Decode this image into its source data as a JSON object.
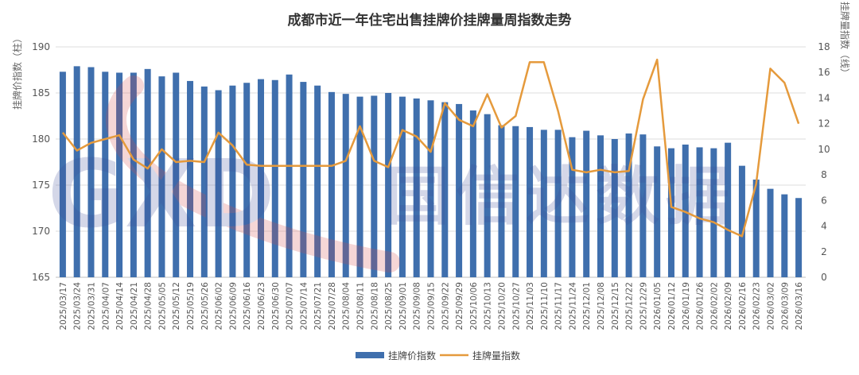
{
  "chart_data": {
    "type": "bar",
    "title": "成都市近一年住宅出售挂牌价挂牌量周指数走势",
    "ylabel_left": "挂牌价指数（柱）",
    "ylabel_right": "挂牌量指数（线）",
    "ylim_left": [
      165,
      190
    ],
    "yticks_left": [
      165,
      170,
      175,
      180,
      185,
      190
    ],
    "ylim_right": [
      0,
      18
    ],
    "yticks_right": [
      0,
      2,
      4,
      6,
      8,
      10,
      12,
      14,
      16,
      18
    ],
    "grid": true,
    "legend_position": "bottom",
    "categories": [
      "2025/03/17",
      "2025/03/24",
      "2025/03/31",
      "2025/04/07",
      "2025/04/14",
      "2025/04/21",
      "2025/04/28",
      "2025/05/05",
      "2025/05/12",
      "2025/05/19",
      "2025/05/26",
      "2025/06/02",
      "2025/06/09",
      "2025/06/16",
      "2025/06/23",
      "2025/06/30",
      "2025/07/07",
      "2025/07/14",
      "2025/07/21",
      "2025/07/28",
      "2025/08/04",
      "2025/08/11",
      "2025/08/18",
      "2025/08/25",
      "2025/09/01",
      "2025/09/08",
      "2025/09/15",
      "2025/09/22",
      "2025/09/29",
      "2025/10/06",
      "2025/10/13",
      "2025/10/20",
      "2025/10/27",
      "2025/11/03",
      "2025/11/10",
      "2025/11/17",
      "2025/11/24",
      "2025/12/01",
      "2025/12/08",
      "2025/12/15",
      "2025/12/22",
      "2025/12/29",
      "2026/01/05",
      "2026/01/12",
      "2026/01/19",
      "2026/01/26",
      "2026/02/02",
      "2026/02/09",
      "2026/02/16",
      "2026/02/23",
      "2026/03/02",
      "2026/03/09",
      "2026/03/16"
    ],
    "x_tick_labels": [
      "2025/03/17",
      "2025/03/24",
      "2025/03/31",
      "2025/04/07",
      "2025/04/14",
      "2025/04/21",
      "2025/04/28",
      "2025/05/05",
      "2025/05/12",
      "2025/05/19",
      "2025/05/26",
      "2025/06/02",
      "2025/06/09",
      "2025/06/16",
      "2025/06/23",
      "2025/06/30",
      "2025/07/07",
      "2025/07/14",
      "2025/07/21",
      "2025/07/28",
      "2025/08/04",
      "2025/08/11",
      "2025/08/18",
      "2025/08/25",
      "2025/09/01",
      "2025/09/08",
      "2025/09/15",
      "2025/09/22",
      "2025/09/29",
      "2025/10/06",
      "2025/10/13",
      "2025/10/20",
      "2025/10/27",
      "2025/11/03",
      "2025/11/10",
      "2025/11/17",
      "2025/11/24",
      "2025/12/01",
      "2025/12/08",
      "2025/12/15",
      "2025/12/22",
      "2025/12/29",
      "2026/01/05",
      "2026/01/12",
      "2026/01/19",
      "2026/01/26",
      "2026/02/02",
      "2026/02/09",
      "2026/02/16",
      "2026/02/23",
      "2026/03/02",
      "2026/03/09",
      "2026/03/16"
    ],
    "series": [
      {
        "name": "挂牌价指数",
        "type": "bar",
        "axis": "left",
        "color": "#3f6fad",
        "values": [
          187.3,
          187.9,
          187.8,
          187.3,
          187.2,
          187.2,
          187.6,
          186.8,
          187.2,
          186.3,
          185.7,
          185.3,
          185.8,
          186.1,
          186.5,
          186.4,
          187.0,
          186.2,
          185.8,
          185.1,
          184.9,
          184.6,
          184.7,
          185.0,
          184.6,
          184.4,
          184.2,
          184.0,
          183.8,
          183.1,
          182.7,
          181.5,
          181.4,
          181.3,
          181.0,
          181.0,
          180.2,
          180.9,
          180.4,
          180.0,
          180.6,
          180.5,
          179.2,
          179.0,
          179.4,
          179.1,
          179.0,
          179.6,
          177.1,
          175.6,
          174.6,
          174.0,
          173.6
        ]
      },
      {
        "name": "挂牌量指数",
        "type": "line",
        "axis": "right",
        "color": "#e59a3c",
        "values": [
          11.3,
          9.9,
          10.5,
          10.8,
          11.1,
          9.2,
          8.5,
          10.0,
          9.0,
          9.1,
          9.0,
          11.3,
          10.3,
          8.8,
          8.7,
          8.7,
          8.7,
          8.7,
          8.7,
          8.7,
          9.1,
          11.8,
          9.1,
          8.6,
          11.5,
          11.0,
          9.8,
          13.6,
          12.3,
          11.8,
          14.3,
          11.7,
          12.6,
          16.8,
          16.8,
          13.0,
          8.4,
          8.2,
          8.4,
          8.2,
          8.3,
          13.9,
          17.0,
          5.5,
          5.1,
          4.6,
          4.3,
          3.7,
          3.2,
          7.3,
          16.3,
          15.2,
          12.0
        ]
      }
    ]
  },
  "watermark": {
    "latin": "GXD",
    "chinese": "国信达数据"
  }
}
